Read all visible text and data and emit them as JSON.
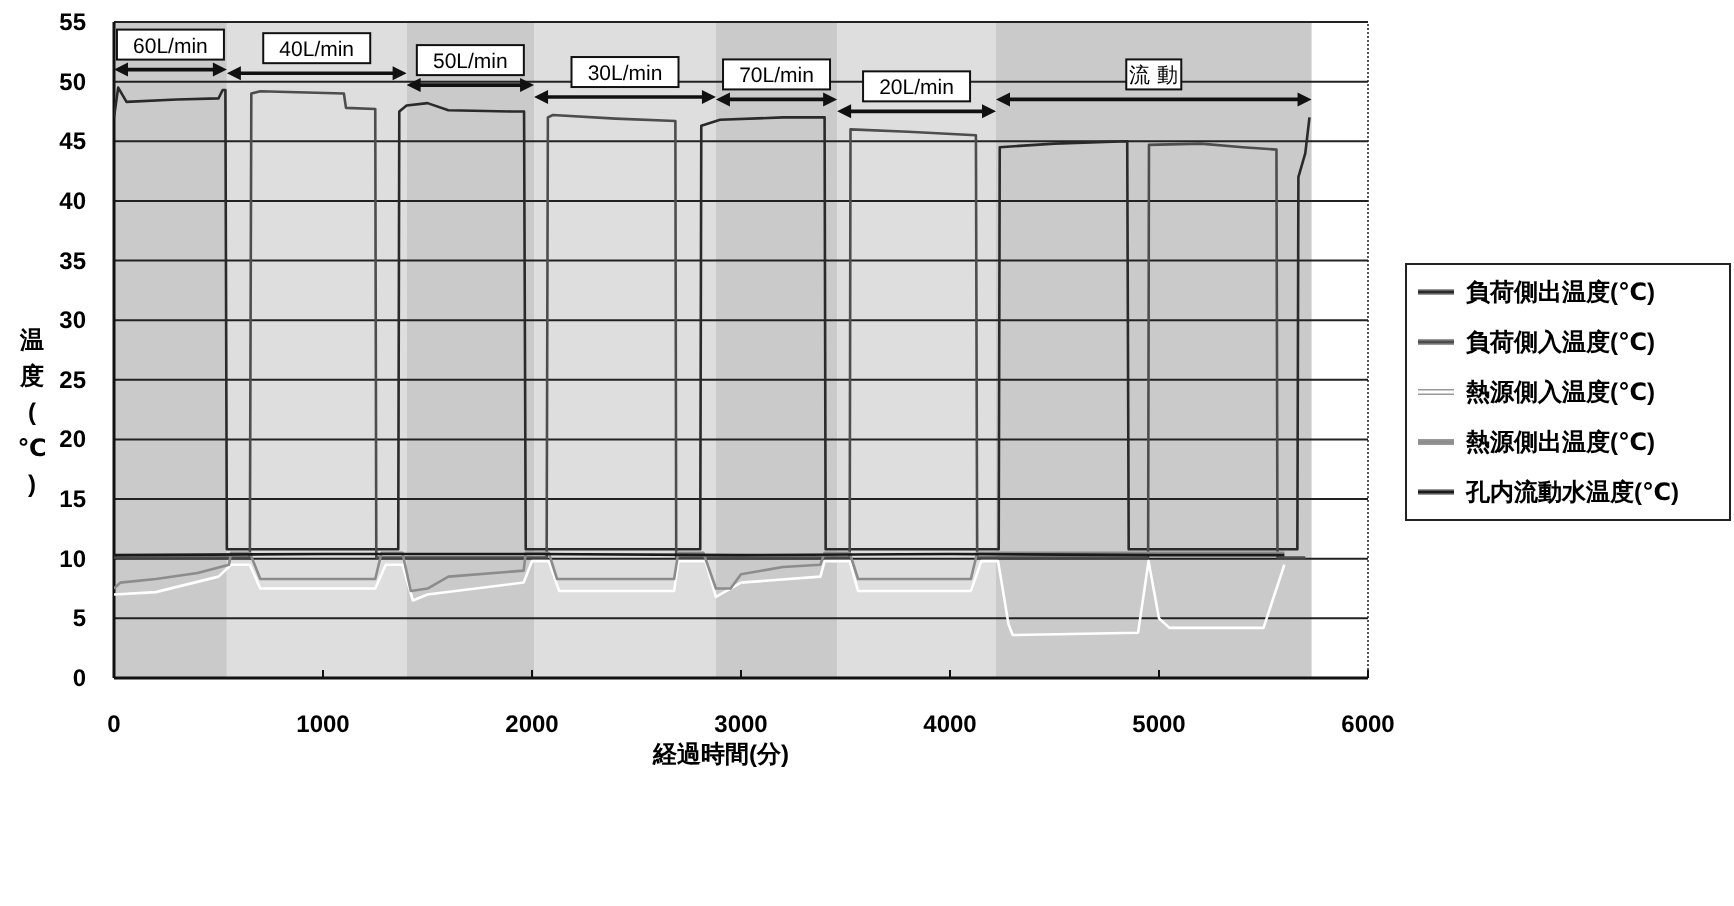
{
  "chart_data": {
    "type": "line",
    "xlabel": "経過時間(分)",
    "ylabel": "温度(℃)",
    "xlim": [
      0,
      6000
    ],
    "xticks": [
      0,
      1000,
      2000,
      3000,
      4000,
      5000,
      6000
    ],
    "ylim": [
      0,
      55
    ],
    "yticks": [
      0,
      5,
      10,
      15,
      20,
      25,
      30,
      35,
      40,
      45,
      50,
      55
    ],
    "grid": "y",
    "legend": "right",
    "line_style": "solid",
    "marker": "none",
    "bands": [
      {
        "axis": "x",
        "from": 0,
        "to": 540,
        "label": "60L/min"
      },
      {
        "axis": "x",
        "from": 540,
        "to": 1400,
        "label": "40L/min"
      },
      {
        "axis": "x",
        "from": 1400,
        "to": 2010,
        "label": "50L/min"
      },
      {
        "axis": "x",
        "from": 2010,
        "to": 2880,
        "label": "30L/min"
      },
      {
        "axis": "x",
        "from": 2880,
        "to": 3460,
        "label": "70L/min"
      },
      {
        "axis": "x",
        "from": 3460,
        "to": 4220,
        "label": "20L/min"
      },
      {
        "axis": "x",
        "from": 4220,
        "to": 5730,
        "label": "流 動"
      }
    ],
    "series": [
      {
        "name": "負荷側出温度(℃)",
        "color": "#2a2a2a",
        "x": [
          0,
          20,
          60,
          300,
          500,
          520,
          533,
          540,
          1000,
          1360,
          1365,
          1400,
          1500,
          1600,
          1900,
          1962,
          1970,
          2400,
          2805,
          2810,
          2900,
          3200,
          3400,
          3405,
          3800,
          4233,
          4238,
          4500,
          4848,
          4855,
          5300,
          5662,
          5667,
          5700,
          5720
        ],
        "values": [
          47,
          49.5,
          48.3,
          48.5,
          48.6,
          49.3,
          49.3,
          10.8,
          10.8,
          10.8,
          47.5,
          48,
          48.2,
          47.6,
          47.5,
          47.5,
          10.8,
          10.8,
          10.8,
          46.3,
          46.8,
          47,
          47,
          10.8,
          10.8,
          10.8,
          44.5,
          44.8,
          45,
          10.8,
          10.8,
          10.8,
          42,
          44,
          47
        ]
      },
      {
        "name": "負荷側入温度(℃)",
        "color": "#4d4d4d",
        "x": [
          0,
          650,
          657,
          700,
          1100,
          1110,
          1250,
          1255,
          2070,
          2076,
          2100,
          2400,
          2686,
          2690,
          3520,
          3524,
          3800,
          4124,
          4130,
          4948,
          4952,
          5200,
          5400,
          5562,
          5567,
          5700
        ],
        "values": [
          10.1,
          10.1,
          49,
          49.2,
          49,
          47.8,
          47.7,
          10.1,
          10.1,
          47,
          47.2,
          46.9,
          46.7,
          10.1,
          10.1,
          46,
          45.8,
          45.5,
          10.1,
          10.1,
          44.7,
          44.8,
          44.5,
          44.3,
          10.1,
          10.1
        ]
      },
      {
        "name": "熱源側入温度(℃)",
        "color": "#ffffff",
        "x": [
          0,
          200,
          500,
          560,
          650,
          700,
          1250,
          1300,
          1380,
          1430,
          1500,
          1960,
          2000,
          2080,
          2130,
          2680,
          2700,
          2830,
          2880,
          3000,
          3380,
          3400,
          3520,
          3560,
          4100,
          4150,
          4230,
          4280,
          4300,
          4900,
          4950,
          5000,
          5050,
          5500,
          5600
        ],
        "values": [
          7,
          7.2,
          8.5,
          9.5,
          9.5,
          7.5,
          7.5,
          9.5,
          9.5,
          6.5,
          7,
          8,
          9.8,
          9.8,
          7.3,
          7.3,
          9.8,
          9.8,
          6.8,
          8,
          8.5,
          9.8,
          9.8,
          7.3,
          7.3,
          9.8,
          9.8,
          4.5,
          3.6,
          3.8,
          9.8,
          5,
          4.2,
          4.2,
          9.5
        ]
      },
      {
        "name": "熱源側出温度(℃)",
        "color": "#8c8c8c",
        "x": [
          0,
          30,
          200,
          400,
          550,
          560,
          650,
          700,
          1250,
          1280,
          1380,
          1420,
          1500,
          1600,
          1960,
          1970,
          2080,
          2120,
          2680,
          2700,
          2820,
          2880,
          2950,
          3000,
          3200,
          3380,
          3400,
          3520,
          3560,
          4100,
          4130,
          5600
        ],
        "values": [
          7.5,
          8,
          8.3,
          8.8,
          9.5,
          10.5,
          10.5,
          8.3,
          8.3,
          10.5,
          10.5,
          7.3,
          7.5,
          8.5,
          9,
          10.5,
          10.5,
          8.3,
          8.3,
          10.5,
          10.5,
          7.5,
          7.5,
          8.7,
          9.3,
          9.5,
          10.5,
          10.5,
          8.3,
          8.3,
          10.5,
          10.5
        ]
      },
      {
        "name": "孔内流動水温度(℃)",
        "color": "#1a1a1a",
        "x": [
          0,
          1000,
          2000,
          3000,
          4000,
          5000,
          5600
        ],
        "values": [
          10.3,
          10.4,
          10.4,
          10.3,
          10.4,
          10.3,
          10.3
        ]
      }
    ]
  }
}
